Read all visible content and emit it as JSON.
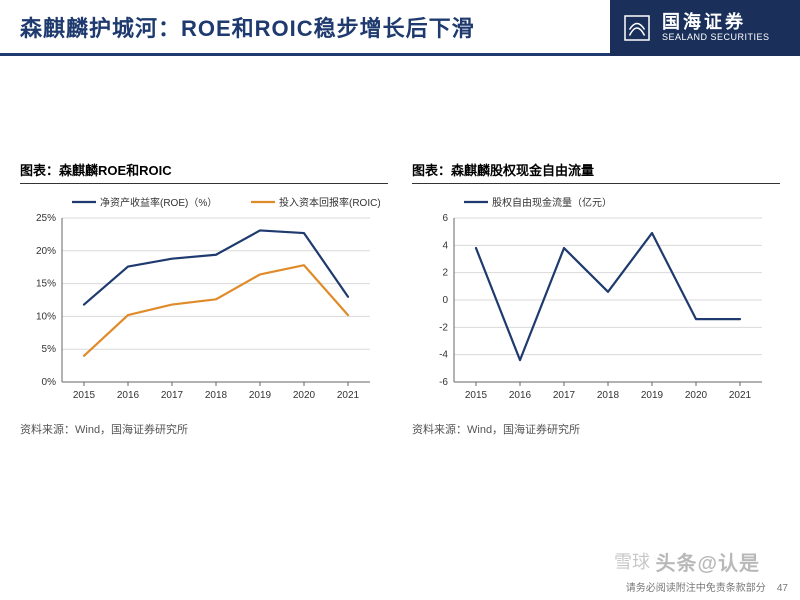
{
  "header": {
    "title": "森麒麟护城河：ROE和ROIC稳步增长后下滑",
    "brand_cn": "国海证券",
    "brand_en": "SEALAND SECURITIES"
  },
  "chart_left": {
    "type": "line",
    "title": "图表：森麒麟ROE和ROIC",
    "source": "资料来源：Wind，国海证券研究所",
    "categories": [
      "2015",
      "2016",
      "2017",
      "2018",
      "2019",
      "2020",
      "2021"
    ],
    "series": [
      {
        "name": "净资产收益率(ROE)（%）",
        "color": "#1f3a6e",
        "width": 2.2,
        "values": [
          11.8,
          17.6,
          18.8,
          19.4,
          23.1,
          22.7,
          13.0
        ]
      },
      {
        "name": "投入资本回报率(ROIC)（%）",
        "color": "#e08b2a",
        "width": 2.2,
        "values": [
          4.0,
          10.2,
          11.8,
          12.6,
          16.4,
          17.8,
          10.2
        ]
      }
    ],
    "ylim": [
      0,
      25
    ],
    "ytick_step": 5,
    "y_suffix": "%",
    "grid_color": "#d9d9d9",
    "axis_color": "#666666",
    "font_size": 10,
    "plot_bg": "#ffffff"
  },
  "chart_right": {
    "type": "line",
    "title": "图表：森麒麟股权现金自由流量",
    "source": "资料来源：Wind，国海证券研究所",
    "categories": [
      "2015",
      "2016",
      "2017",
      "2018",
      "2019",
      "2020",
      "2021"
    ],
    "series": [
      {
        "name": "股权自由现金流量（亿元）",
        "color": "#1f3a6e",
        "width": 2.2,
        "values": [
          3.8,
          -4.4,
          3.8,
          0.6,
          4.9,
          -1.4,
          -1.4
        ]
      }
    ],
    "ylim": [
      -6,
      6
    ],
    "ytick_step": 2,
    "y_suffix": "",
    "grid_color": "#d9d9d9",
    "axis_color": "#666666",
    "font_size": 10,
    "plot_bg": "#ffffff"
  },
  "footer": {
    "disclaimer": "请务必阅读附注中免责条款部分",
    "page": "47"
  },
  "watermark": {
    "a": "头条@认是",
    "b": "雪球"
  }
}
